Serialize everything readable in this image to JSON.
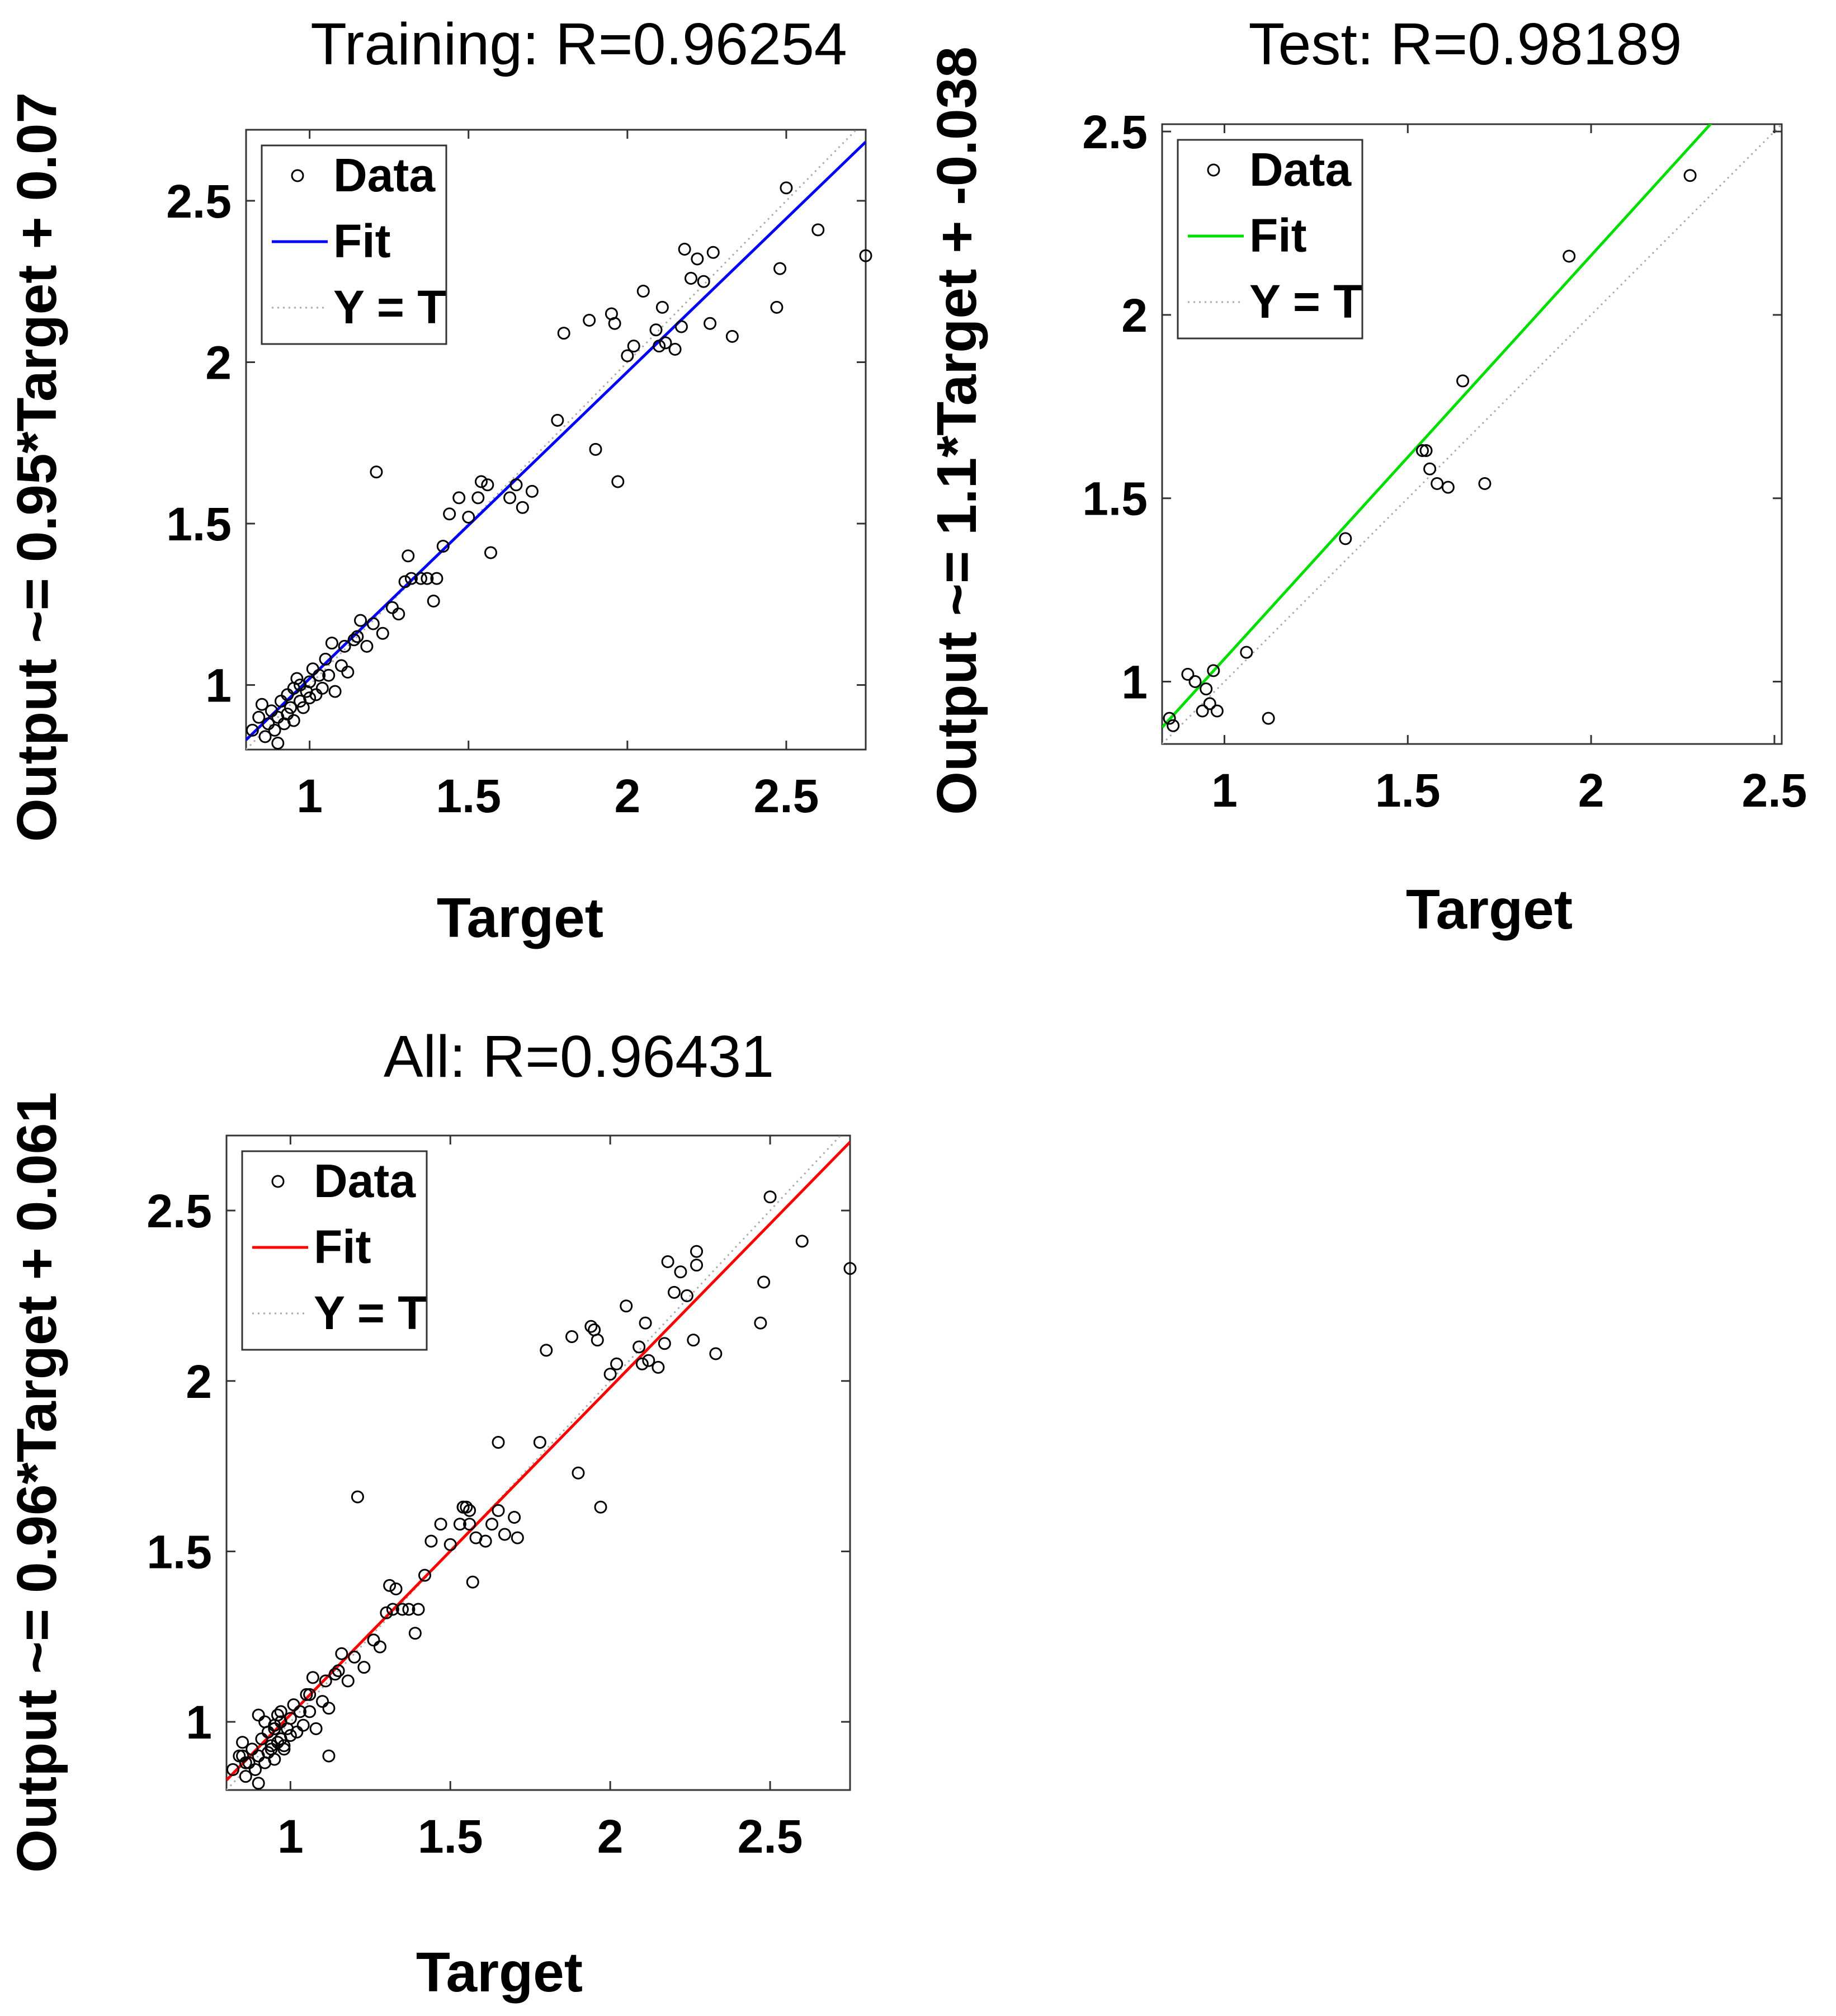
{
  "chart_data": [
    {
      "type": "scatter",
      "title": "Training: R=0.96254",
      "xlabel": "Target",
      "ylabel": "Output ~= 0.95*Target + 0.07",
      "xlim": [
        0.8,
        2.75
      ],
      "ylim": [
        0.8,
        2.72
      ],
      "xticks": [
        "1",
        "1.5",
        "2",
        "2.5"
      ],
      "yticks": [
        "1",
        "1.5",
        "2",
        "2.5"
      ],
      "fit": {
        "slope": 0.95,
        "intercept": 0.07,
        "color": "#0000ff"
      },
      "legend": [
        "Data",
        "Fit",
        "Y = T"
      ],
      "legend_position": "top-left",
      "points": [
        [
          0.82,
          0.86
        ],
        [
          0.84,
          0.9
        ],
        [
          0.85,
          0.94
        ],
        [
          0.86,
          0.84
        ],
        [
          0.87,
          0.88
        ],
        [
          0.88,
          0.92
        ],
        [
          0.89,
          0.86
        ],
        [
          0.9,
          0.9
        ],
        [
          0.9,
          0.82
        ],
        [
          0.91,
          0.95
        ],
        [
          0.92,
          0.88
        ],
        [
          0.93,
          0.91
        ],
        [
          0.93,
          0.97
        ],
        [
          0.94,
          0.93
        ],
        [
          0.95,
          0.99
        ],
        [
          0.95,
          0.89
        ],
        [
          0.96,
          1.02
        ],
        [
          0.97,
          0.95
        ],
        [
          0.97,
          1.0
        ],
        [
          0.98,
          0.93
        ],
        [
          0.99,
          0.98
        ],
        [
          1.0,
          1.01
        ],
        [
          1.0,
          0.96
        ],
        [
          1.01,
          1.05
        ],
        [
          1.02,
          0.97
        ],
        [
          1.03,
          1.03
        ],
        [
          1.04,
          0.99
        ],
        [
          1.05,
          1.08
        ],
        [
          1.06,
          1.03
        ],
        [
          1.07,
          1.13
        ],
        [
          1.08,
          0.98
        ],
        [
          1.1,
          1.06
        ],
        [
          1.11,
          1.12
        ],
        [
          1.12,
          1.04
        ],
        [
          1.14,
          1.14
        ],
        [
          1.15,
          1.15
        ],
        [
          1.16,
          1.2
        ],
        [
          1.18,
          1.12
        ],
        [
          1.2,
          1.19
        ],
        [
          1.21,
          1.66
        ],
        [
          1.23,
          1.16
        ],
        [
          1.26,
          1.24
        ],
        [
          1.28,
          1.22
        ],
        [
          1.3,
          1.32
        ],
        [
          1.31,
          1.4
        ],
        [
          1.32,
          1.33
        ],
        [
          1.35,
          1.33
        ],
        [
          1.37,
          1.33
        ],
        [
          1.39,
          1.26
        ],
        [
          1.4,
          1.33
        ],
        [
          1.42,
          1.43
        ],
        [
          1.44,
          1.53
        ],
        [
          1.47,
          1.58
        ],
        [
          1.5,
          1.52
        ],
        [
          1.53,
          1.58
        ],
        [
          1.54,
          1.63
        ],
        [
          1.56,
          1.62
        ],
        [
          1.57,
          1.41
        ],
        [
          1.63,
          1.58
        ],
        [
          1.65,
          1.62
        ],
        [
          1.67,
          1.55
        ],
        [
          1.7,
          1.6
        ],
        [
          1.78,
          1.82
        ],
        [
          1.8,
          2.09
        ],
        [
          1.88,
          2.13
        ],
        [
          1.9,
          1.73
        ],
        [
          1.95,
          2.15
        ],
        [
          1.96,
          2.12
        ],
        [
          1.97,
          1.63
        ],
        [
          2.0,
          2.02
        ],
        [
          2.02,
          2.05
        ],
        [
          2.05,
          2.22
        ],
        [
          2.09,
          2.1
        ],
        [
          2.1,
          2.05
        ],
        [
          2.11,
          2.17
        ],
        [
          2.12,
          2.06
        ],
        [
          2.15,
          2.04
        ],
        [
          2.17,
          2.11
        ],
        [
          2.18,
          2.35
        ],
        [
          2.2,
          2.26
        ],
        [
          2.22,
          2.32
        ],
        [
          2.24,
          2.25
        ],
        [
          2.26,
          2.12
        ],
        [
          2.27,
          2.34
        ],
        [
          2.33,
          2.08
        ],
        [
          2.47,
          2.17
        ],
        [
          2.48,
          2.29
        ],
        [
          2.5,
          2.54
        ],
        [
          2.6,
          2.41
        ],
        [
          2.75,
          2.33
        ]
      ]
    },
    {
      "type": "scatter",
      "title": "Test: R=0.98189",
      "xlabel": "Target",
      "ylabel": "Output ~= 1.1*Target + -0.038",
      "xlim": [
        0.83,
        2.52
      ],
      "ylim": [
        0.83,
        2.52
      ],
      "xticks": [
        "1",
        "1.5",
        "2",
        "2.5"
      ],
      "yticks": [
        "1",
        "1.5",
        "2",
        "2.5"
      ],
      "fit": {
        "slope": 1.1,
        "intercept": -0.038,
        "color": "#00dd00"
      },
      "legend": [
        "Data",
        "Fit",
        "Y = T"
      ],
      "legend_position": "top-left",
      "points": [
        [
          0.85,
          0.9
        ],
        [
          0.86,
          0.88
        ],
        [
          0.9,
          1.02
        ],
        [
          0.92,
          1.0
        ],
        [
          0.94,
          0.92
        ],
        [
          0.95,
          0.98
        ],
        [
          0.96,
          0.94
        ],
        [
          0.97,
          1.03
        ],
        [
          0.98,
          0.92
        ],
        [
          1.06,
          1.08
        ],
        [
          1.12,
          0.9
        ],
        [
          1.33,
          1.39
        ],
        [
          1.54,
          1.63
        ],
        [
          1.55,
          1.63
        ],
        [
          1.56,
          1.58
        ],
        [
          1.58,
          1.54
        ],
        [
          1.61,
          1.53
        ],
        [
          1.65,
          1.82
        ],
        [
          1.71,
          1.54
        ],
        [
          1.94,
          2.16
        ],
        [
          2.27,
          2.38
        ]
      ]
    },
    {
      "type": "scatter",
      "title": "All: R=0.96431",
      "xlabel": "Target",
      "ylabel": "Output ~= 0.96*Target + 0.061",
      "xlim": [
        0.8,
        2.75
      ],
      "ylim": [
        0.8,
        2.72
      ],
      "xticks": [
        "1",
        "1.5",
        "2",
        "2.5"
      ],
      "yticks": [
        "1",
        "1.5",
        "2",
        "2.5"
      ],
      "fit": {
        "slope": 0.96,
        "intercept": 0.061,
        "color": "#ff0000"
      },
      "legend": [
        "Data",
        "Fit",
        "Y = T"
      ],
      "legend_position": "top-left",
      "points": [
        [
          0.82,
          0.86
        ],
        [
          0.84,
          0.9
        ],
        [
          0.85,
          0.94
        ],
        [
          0.86,
          0.84
        ],
        [
          0.87,
          0.88
        ],
        [
          0.88,
          0.92
        ],
        [
          0.89,
          0.86
        ],
        [
          0.9,
          0.9
        ],
        [
          0.9,
          0.82
        ],
        [
          0.91,
          0.95
        ],
        [
          0.92,
          0.88
        ],
        [
          0.93,
          0.91
        ],
        [
          0.93,
          0.97
        ],
        [
          0.94,
          0.93
        ],
        [
          0.95,
          0.99
        ],
        [
          0.95,
          0.89
        ],
        [
          0.96,
          1.02
        ],
        [
          0.97,
          0.95
        ],
        [
          0.97,
          1.0
        ],
        [
          0.98,
          0.93
        ],
        [
          0.99,
          0.98
        ],
        [
          1.0,
          1.01
        ],
        [
          1.0,
          0.96
        ],
        [
          1.01,
          1.05
        ],
        [
          1.02,
          0.97
        ],
        [
          1.03,
          1.03
        ],
        [
          1.04,
          0.99
        ],
        [
          1.05,
          1.08
        ],
        [
          1.06,
          1.03
        ],
        [
          1.07,
          1.13
        ],
        [
          1.08,
          0.98
        ],
        [
          1.1,
          1.06
        ],
        [
          1.11,
          1.12
        ],
        [
          1.12,
          1.04
        ],
        [
          1.14,
          1.14
        ],
        [
          1.15,
          1.15
        ],
        [
          1.16,
          1.2
        ],
        [
          1.18,
          1.12
        ],
        [
          1.2,
          1.19
        ],
        [
          1.21,
          1.66
        ],
        [
          1.23,
          1.16
        ],
        [
          1.26,
          1.24
        ],
        [
          1.28,
          1.22
        ],
        [
          1.3,
          1.32
        ],
        [
          1.31,
          1.4
        ],
        [
          1.32,
          1.33
        ],
        [
          1.35,
          1.33
        ],
        [
          1.37,
          1.33
        ],
        [
          1.39,
          1.26
        ],
        [
          1.4,
          1.33
        ],
        [
          1.42,
          1.43
        ],
        [
          1.44,
          1.53
        ],
        [
          1.47,
          1.58
        ],
        [
          1.5,
          1.52
        ],
        [
          1.53,
          1.58
        ],
        [
          1.54,
          1.63
        ],
        [
          1.56,
          1.62
        ],
        [
          1.57,
          1.41
        ],
        [
          1.63,
          1.58
        ],
        [
          1.65,
          1.62
        ],
        [
          1.67,
          1.55
        ],
        [
          1.7,
          1.6
        ],
        [
          1.78,
          1.82
        ],
        [
          1.8,
          2.09
        ],
        [
          1.88,
          2.13
        ],
        [
          1.9,
          1.73
        ],
        [
          1.95,
          2.15
        ],
        [
          1.96,
          2.12
        ],
        [
          1.97,
          1.63
        ],
        [
          2.0,
          2.02
        ],
        [
          2.02,
          2.05
        ],
        [
          2.05,
          2.22
        ],
        [
          2.09,
          2.1
        ],
        [
          2.1,
          2.05
        ],
        [
          2.11,
          2.17
        ],
        [
          2.12,
          2.06
        ],
        [
          2.15,
          2.04
        ],
        [
          2.17,
          2.11
        ],
        [
          2.18,
          2.35
        ],
        [
          2.2,
          2.26
        ],
        [
          2.22,
          2.32
        ],
        [
          2.24,
          2.25
        ],
        [
          2.26,
          2.12
        ],
        [
          2.27,
          2.34
        ],
        [
          2.33,
          2.08
        ],
        [
          2.47,
          2.17
        ],
        [
          2.48,
          2.29
        ],
        [
          2.5,
          2.54
        ],
        [
          2.6,
          2.41
        ],
        [
          2.75,
          2.33
        ],
        [
          0.85,
          0.9
        ],
        [
          0.86,
          0.88
        ],
        [
          0.9,
          1.02
        ],
        [
          0.92,
          1.0
        ],
        [
          0.94,
          0.92
        ],
        [
          0.95,
          0.98
        ],
        [
          0.96,
          0.94
        ],
        [
          0.97,
          1.03
        ],
        [
          0.98,
          0.92
        ],
        [
          1.06,
          1.08
        ],
        [
          1.12,
          0.9
        ],
        [
          1.33,
          1.39
        ],
        [
          1.54,
          1.63
        ],
        [
          1.55,
          1.63
        ],
        [
          1.56,
          1.58
        ],
        [
          1.58,
          1.54
        ],
        [
          1.61,
          1.53
        ],
        [
          1.65,
          1.82
        ],
        [
          1.71,
          1.54
        ],
        [
          1.94,
          2.16
        ],
        [
          2.27,
          2.38
        ]
      ]
    }
  ]
}
